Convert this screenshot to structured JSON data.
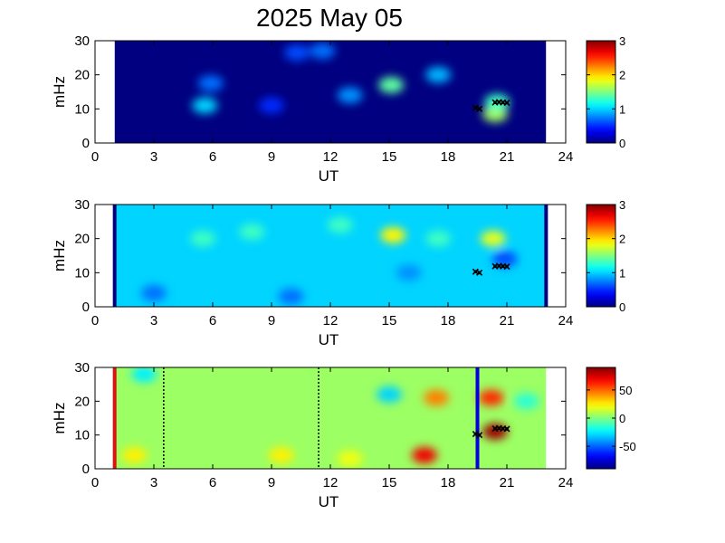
{
  "title": "2025 May 05",
  "chart_data": [
    {
      "type": "heatmap",
      "panel": 1,
      "xlabel": "UT",
      "ylabel": "mHz",
      "xlim": [
        0,
        24
      ],
      "ylim": [
        0,
        30
      ],
      "xticks": [
        0,
        3,
        6,
        9,
        12,
        15,
        18,
        21,
        24
      ],
      "yticks": [
        0,
        10,
        20,
        30
      ],
      "data_range_ut": [
        1,
        23
      ],
      "colorbar": {
        "range": [
          0,
          3
        ],
        "ticks": [
          0,
          1,
          2,
          3
        ],
        "colormap": "jet"
      },
      "background_value": 0,
      "features": [
        {
          "ut": 5.6,
          "mhz": 11.0,
          "value": 1.0
        },
        {
          "ut": 5.9,
          "mhz": 17.5,
          "value": 0.7
        },
        {
          "ut": 9.0,
          "mhz": 11.0,
          "value": 0.5
        },
        {
          "ut": 10.3,
          "mhz": 26.5,
          "value": 0.6
        },
        {
          "ut": 11.6,
          "mhz": 27.0,
          "value": 0.7
        },
        {
          "ut": 13.0,
          "mhz": 14.0,
          "value": 0.8
        },
        {
          "ut": 15.1,
          "mhz": 17.0,
          "value": 1.4
        },
        {
          "ut": 17.5,
          "mhz": 20.0,
          "value": 0.9
        },
        {
          "ut": 20.4,
          "mhz": 8.5,
          "value": 1.6
        },
        {
          "ut": 20.5,
          "mhz": 12.0,
          "value": 1.3
        }
      ],
      "markers": [
        {
          "ut": 19.4,
          "mhz": 10.3
        },
        {
          "ut": 19.6,
          "mhz": 10.0
        },
        {
          "ut": 20.4,
          "mhz": 11.9
        },
        {
          "ut": 20.6,
          "mhz": 12.0
        },
        {
          "ut": 20.8,
          "mhz": 11.9
        },
        {
          "ut": 21.0,
          "mhz": 11.8
        }
      ]
    },
    {
      "type": "heatmap",
      "panel": 2,
      "xlabel": "UT",
      "ylabel": "mHz",
      "xlim": [
        0,
        24
      ],
      "ylim": [
        0,
        30
      ],
      "xticks": [
        0,
        3,
        6,
        9,
        12,
        15,
        18,
        21,
        24
      ],
      "yticks": [
        0,
        10,
        20,
        30
      ],
      "data_range_ut": [
        1,
        23
      ],
      "colorbar": {
        "range": [
          0,
          3
        ],
        "ticks": [
          0,
          1,
          2,
          3
        ],
        "colormap": "jet"
      },
      "background_value": 1.0,
      "vertical_lines": [
        {
          "ut": 1.0,
          "color": "#00007f",
          "style": "solid"
        },
        {
          "ut": 23.0,
          "color": "#00007f",
          "style": "solid"
        }
      ],
      "features": [
        {
          "ut": 15.2,
          "mhz": 21.0,
          "value": 1.9
        },
        {
          "ut": 20.3,
          "mhz": 20.0,
          "value": 1.8
        },
        {
          "ut": 5.5,
          "mhz": 20.0,
          "value": 1.3
        },
        {
          "ut": 8.0,
          "mhz": 22.0,
          "value": 1.3
        },
        {
          "ut": 12.5,
          "mhz": 24.0,
          "value": 1.3
        },
        {
          "ut": 17.5,
          "mhz": 20.0,
          "value": 1.3
        },
        {
          "ut": 20.9,
          "mhz": 14.0,
          "value": 0.6
        },
        {
          "ut": 3.0,
          "mhz": 4.0,
          "value": 0.7
        },
        {
          "ut": 10.0,
          "mhz": 3.0,
          "value": 0.7
        },
        {
          "ut": 16.0,
          "mhz": 10.0,
          "value": 0.8
        }
      ],
      "markers": [
        {
          "ut": 19.4,
          "mhz": 10.3
        },
        {
          "ut": 19.6,
          "mhz": 10.0
        },
        {
          "ut": 20.4,
          "mhz": 11.9
        },
        {
          "ut": 20.6,
          "mhz": 12.0
        },
        {
          "ut": 20.8,
          "mhz": 11.9
        },
        {
          "ut": 21.0,
          "mhz": 11.8
        }
      ]
    },
    {
      "type": "heatmap",
      "panel": 3,
      "xlabel": "UT",
      "ylabel": "mHz",
      "xlim": [
        0,
        24
      ],
      "ylim": [
        0,
        30
      ],
      "xticks": [
        0,
        3,
        6,
        9,
        12,
        15,
        18,
        21,
        24
      ],
      "yticks": [
        0,
        10,
        20,
        30
      ],
      "data_range_ut": [
        1,
        23
      ],
      "colorbar": {
        "range": [
          -90,
          90
        ],
        "ticks": [
          -50,
          0,
          50
        ],
        "colormap": "jet"
      },
      "background_value": 5,
      "vertical_lines": [
        {
          "ut": 1.0,
          "color": "#e01010",
          "style": "solid"
        },
        {
          "ut": 3.5,
          "color": "#000000",
          "style": "dotted"
        },
        {
          "ut": 11.4,
          "color": "#000000",
          "style": "dotted"
        },
        {
          "ut": 19.5,
          "color": "#0000e0",
          "style": "solid"
        }
      ],
      "features": [
        {
          "ut": 2.0,
          "mhz": 4.0,
          "value": 25
        },
        {
          "ut": 9.5,
          "mhz": 4.0,
          "value": 25
        },
        {
          "ut": 13.0,
          "mhz": 3.0,
          "value": 20
        },
        {
          "ut": 16.8,
          "mhz": 4.0,
          "value": 70
        },
        {
          "ut": 17.4,
          "mhz": 21.0,
          "value": 45
        },
        {
          "ut": 20.4,
          "mhz": 11.0,
          "value": 85
        },
        {
          "ut": 20.2,
          "mhz": 21.0,
          "value": 60
        },
        {
          "ut": 15.0,
          "mhz": 22.0,
          "value": -30
        },
        {
          "ut": 2.5,
          "mhz": 28.0,
          "value": -25
        },
        {
          "ut": 22.0,
          "mhz": 20.0,
          "value": -15
        }
      ],
      "markers": [
        {
          "ut": 19.4,
          "mhz": 10.3
        },
        {
          "ut": 19.6,
          "mhz": 10.0
        },
        {
          "ut": 20.4,
          "mhz": 11.9
        },
        {
          "ut": 20.6,
          "mhz": 12.0
        },
        {
          "ut": 20.8,
          "mhz": 11.9
        },
        {
          "ut": 21.0,
          "mhz": 11.8
        }
      ]
    }
  ]
}
